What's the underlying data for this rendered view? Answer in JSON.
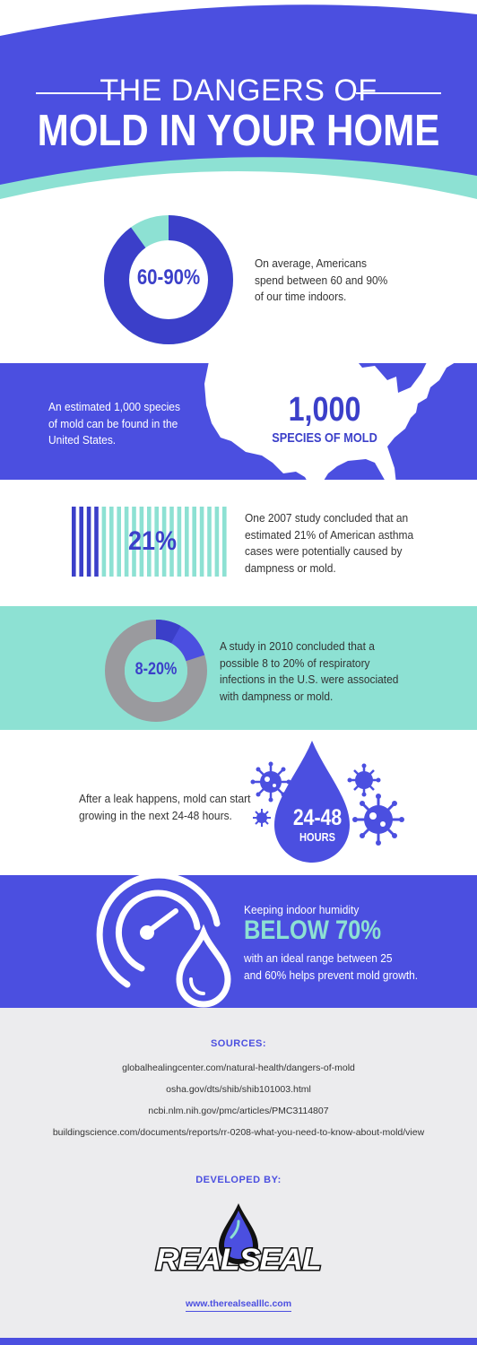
{
  "header": {
    "title_top": "THE DANGERS OF",
    "title_main": "MOLD IN YOUR HOME"
  },
  "stats": [
    {
      "value": "60-90%",
      "lines": [
        "On average, Americans",
        "spend between 60 and 90%",
        "of our time indoors."
      ],
      "donut_fraction": 0.9
    },
    {
      "value": "1,000",
      "sub": "SPECIES OF MOLD",
      "lines": [
        "An estimated 1,000 species",
        "of mold can be found in the",
        "United States."
      ]
    },
    {
      "value": "21%",
      "lines": [
        "One 2007 study concluded that an",
        "estimated 21% of American asthma",
        "cases were potentially caused by",
        "dampness or mold."
      ],
      "bar_fraction": 0.21
    },
    {
      "value": "8-20%",
      "lines": [
        "A study in 2010 concluded that a",
        "possible 8 to 20% of respiratory",
        "infections in the U.S. were associated",
        "with dampness or mold."
      ],
      "donut_fraction_low": 0.08,
      "donut_fraction_high": 0.2
    },
    {
      "value": "24-48",
      "sub": "HOURS",
      "lines": [
        "After a leak happens, mold can start",
        "growing in the next 24-48 hours."
      ]
    },
    {
      "intro": "Keeping indoor humidity",
      "value": "BELOW 70%",
      "lines": [
        "with an ideal range between 25",
        "and 60% helps prevent mold growth."
      ]
    }
  ],
  "sources": {
    "title": "SOURCES:",
    "items": [
      "globalhealingcenter.com/natural-health/dangers-of-mold",
      "osha.gov/dts/shib/shib101003.html",
      "ncbi.nlm.nih.gov/pmc/articles/PMC3114807",
      "buildingscience.com/documents/reports/rr-0208-what-you-need-to-know-about-mold/view"
    ]
  },
  "developer": {
    "title": "DEVELOPED BY:",
    "logo_text": "REALSEAL",
    "website": "www.therealsealllc.com"
  },
  "colors": {
    "blue": "#4b4fe0",
    "dark_blue": "#3b3fc9",
    "mint": "#8de1d3",
    "grey": "#9a9a9e",
    "light_grey": "#ececee"
  }
}
